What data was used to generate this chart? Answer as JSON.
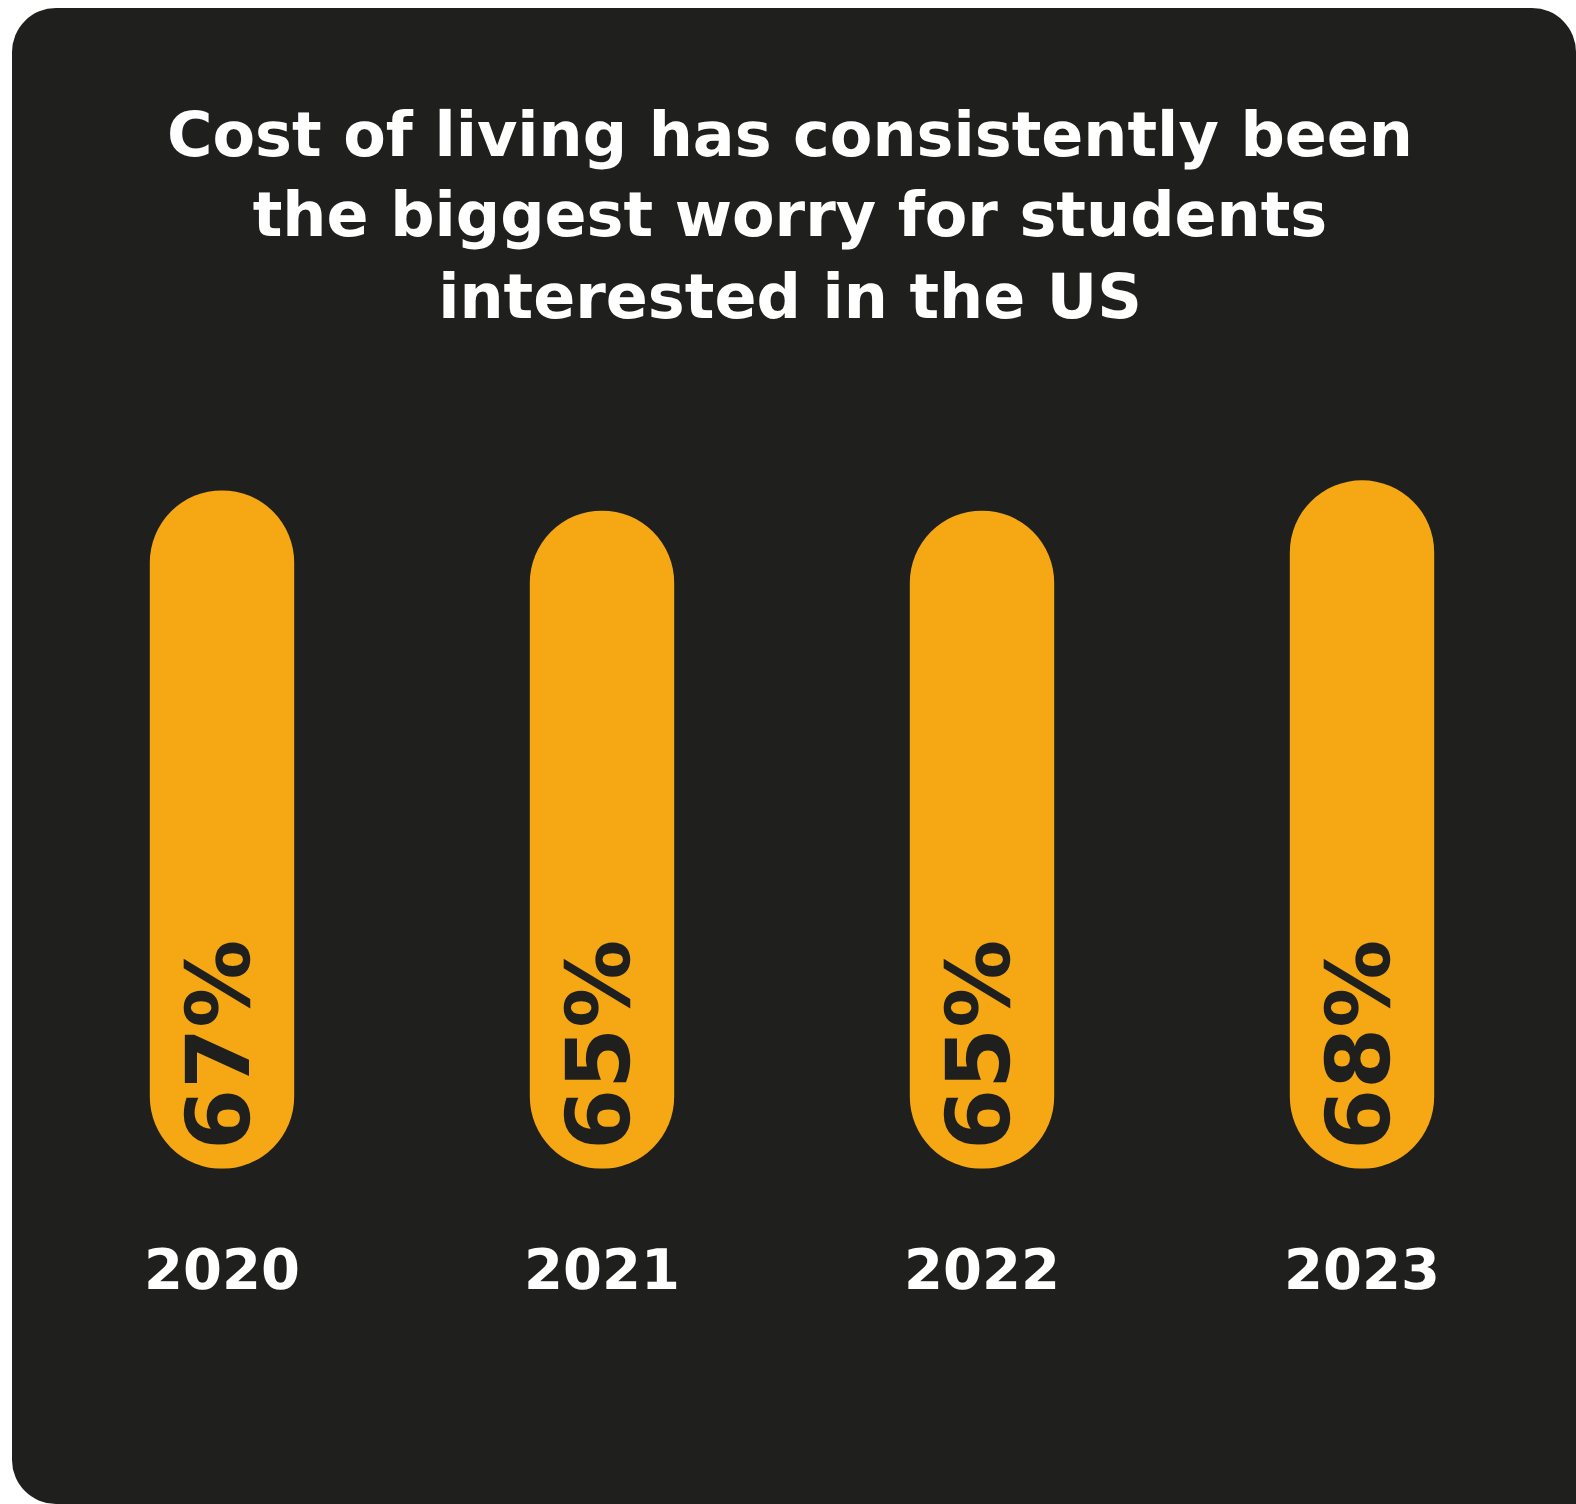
{
  "chart_data": {
    "type": "bar",
    "title": "Cost of living has consistently been the biggest worry for students interested in the US",
    "categories": [
      "2020",
      "2021",
      "2022",
      "2023"
    ],
    "values": [
      67,
      65,
      65,
      68
    ],
    "value_labels": [
      "67%",
      "65%",
      "65%",
      "68%"
    ],
    "color": "#f5a814",
    "tick_labels": "x"
  }
}
